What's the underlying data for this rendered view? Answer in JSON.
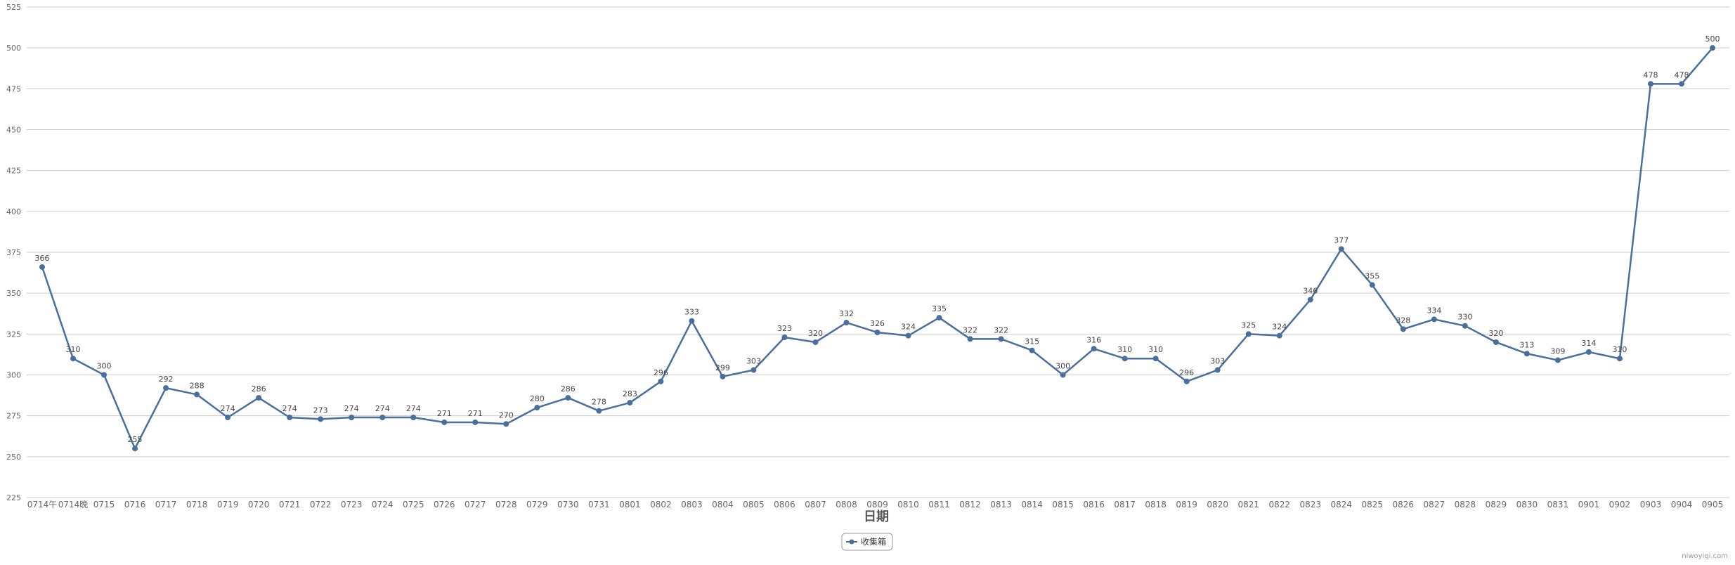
{
  "chart_data": {
    "type": "line",
    "xlabel": "日期",
    "ylabel": "",
    "ylim": [
      225,
      525
    ],
    "yticks": [
      225,
      250,
      275,
      300,
      325,
      350,
      375,
      400,
      425,
      450,
      475,
      500,
      525
    ],
    "grid": true,
    "legend_position": "bottom-center",
    "categories": [
      "0714午",
      "0714晚",
      "0715",
      "0716",
      "0717",
      "0718",
      "0719",
      "0720",
      "0721",
      "0722",
      "0723",
      "0724",
      "0725",
      "0726",
      "0727",
      "0728",
      "0729",
      "0730",
      "0731",
      "0801",
      "0802",
      "0803",
      "0804",
      "0805",
      "0806",
      "0807",
      "0808",
      "0809",
      "0810",
      "0811",
      "0812",
      "0813",
      "0814",
      "0815",
      "0816",
      "0817",
      "0818",
      "0819",
      "0820",
      "0821",
      "0822",
      "0823",
      "0824",
      "0825",
      "0826",
      "0827",
      "0828",
      "0829",
      "0830",
      "0831",
      "0901",
      "0902",
      "0903",
      "0904",
      "0905"
    ],
    "series": [
      {
        "name": "收集箱",
        "color": "#4a6f9c",
        "values": [
          366,
          310,
          300,
          255,
          292,
          288,
          274,
          286,
          274,
          273,
          274,
          274,
          274,
          271,
          271,
          270,
          280,
          286,
          278,
          283,
          296,
          333,
          299,
          303,
          323,
          320,
          332,
          326,
          324,
          335,
          322,
          322,
          315,
          300,
          316,
          310,
          310,
          296,
          303,
          325,
          324,
          346,
          377,
          355,
          328,
          334,
          330,
          320,
          313,
          309,
          314,
          310,
          478,
          478,
          500
        ]
      }
    ]
  },
  "credit": "niwoyiqi.com"
}
